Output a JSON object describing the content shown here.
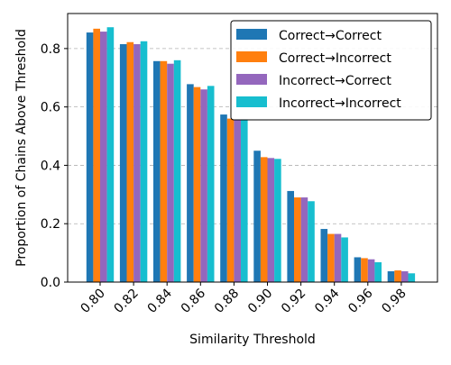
{
  "chart_data": {
    "type": "bar",
    "xlabel": "Similarity Threshold",
    "ylabel": "Proportion of Chains Above Threshold",
    "categories": [
      "0.80",
      "0.82",
      "0.84",
      "0.86",
      "0.88",
      "0.90",
      "0.92",
      "0.94",
      "0.96",
      "0.98"
    ],
    "ylim": [
      0,
      0.92
    ],
    "yticks": [
      "0.0",
      "0.2",
      "0.4",
      "0.6",
      "0.8"
    ],
    "grid": "y-dashed",
    "legend_position": "top-right",
    "series": [
      {
        "name": "Correct→Correct",
        "color": "#1f77b4",
        "values": [
          0.855,
          0.815,
          0.757,
          0.678,
          0.574,
          0.45,
          0.312,
          0.182,
          0.085,
          0.037
        ]
      },
      {
        "name": "Correct→Incorrect",
        "color": "#ff7f0e",
        "values": [
          0.868,
          0.822,
          0.757,
          0.668,
          0.56,
          0.428,
          0.29,
          0.165,
          0.082,
          0.04
        ]
      },
      {
        "name": "Incorrect→Correct",
        "color": "#9467bd",
        "values": [
          0.858,
          0.815,
          0.748,
          0.66,
          0.555,
          0.425,
          0.29,
          0.165,
          0.078,
          0.037
        ]
      },
      {
        "name": "Incorrect→Incorrect",
        "color": "#17becf",
        "values": [
          0.873,
          0.825,
          0.76,
          0.672,
          0.558,
          0.422,
          0.277,
          0.153,
          0.068,
          0.03
        ]
      }
    ]
  }
}
